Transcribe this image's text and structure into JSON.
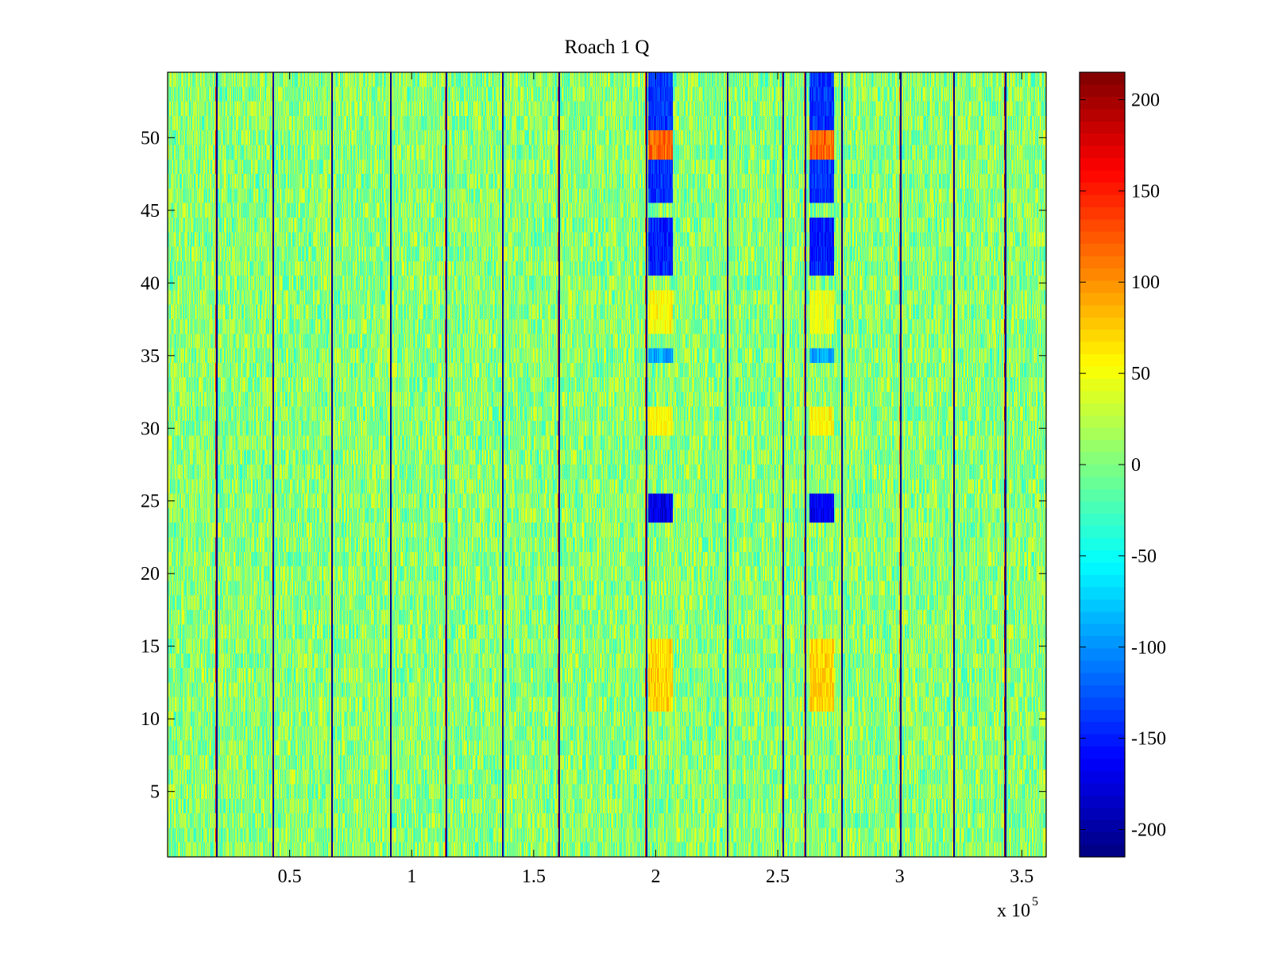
{
  "chart_data": {
    "type": "heatmap",
    "title": "Roach 1 Q",
    "xlabel": "",
    "ylabel": "",
    "x_multiplier": "x 10",
    "x_multiplier_exponent": "5",
    "xlim": [
      0,
      360000
    ],
    "ylim": [
      0.5,
      54.5
    ],
    "x_ticks": [
      {
        "value": 50000,
        "label": "0.5"
      },
      {
        "value": 100000,
        "label": "1"
      },
      {
        "value": 150000,
        "label": "1.5"
      },
      {
        "value": 200000,
        "label": "2"
      },
      {
        "value": 250000,
        "label": "2.5"
      },
      {
        "value": 300000,
        "label": "3"
      },
      {
        "value": 350000,
        "label": "3.5"
      }
    ],
    "y_ticks": [
      {
        "value": 5,
        "label": "5"
      },
      {
        "value": 10,
        "label": "10"
      },
      {
        "value": 15,
        "label": "15"
      },
      {
        "value": 20,
        "label": "20"
      },
      {
        "value": 25,
        "label": "25"
      },
      {
        "value": 30,
        "label": "30"
      },
      {
        "value": 35,
        "label": "35"
      },
      {
        "value": 40,
        "label": "40"
      },
      {
        "value": 45,
        "label": "45"
      },
      {
        "value": 50,
        "label": "50"
      }
    ],
    "colorbar": {
      "colormap": "jet",
      "clim": [
        -215,
        215
      ],
      "ticks": [
        {
          "value": 200,
          "label": "200"
        },
        {
          "value": 150,
          "label": "150"
        },
        {
          "value": 100,
          "label": "100"
        },
        {
          "value": 50,
          "label": "50"
        },
        {
          "value": 0,
          "label": "0"
        },
        {
          "value": -50,
          "label": "-50"
        },
        {
          "value": -100,
          "label": "-100"
        },
        {
          "value": -150,
          "label": "-150"
        },
        {
          "value": -200,
          "label": "-200"
        }
      ]
    },
    "rows": 54,
    "background_value_range": [
      -40,
      50
    ],
    "stripe_lines": [
      {
        "x": 20000,
        "value": -210,
        "edge_value": 160
      },
      {
        "x": 43000,
        "value": -200,
        "edge_value": 80
      },
      {
        "x": 67000,
        "value": -210,
        "edge_value": 60
      },
      {
        "x": 91000,
        "value": -210,
        "edge_value": 60
      },
      {
        "x": 114000,
        "value": -210,
        "edge_value": 140
      },
      {
        "x": 137000,
        "value": -200,
        "edge_value": 60
      },
      {
        "x": 160000,
        "value": -210,
        "edge_value": 140
      },
      {
        "x": 196000,
        "value": -210,
        "edge_value": 140
      },
      {
        "x": 229000,
        "value": -210,
        "edge_value": 60
      },
      {
        "x": 252000,
        "value": -200,
        "edge_value": 100
      },
      {
        "x": 261000,
        "value": -210,
        "edge_value": 120
      },
      {
        "x": 276000,
        "value": -210,
        "edge_value": 60
      },
      {
        "x": 300000,
        "value": -210,
        "edge_value": 120
      },
      {
        "x": 322000,
        "value": -210,
        "edge_value": 80
      },
      {
        "x": 343000,
        "value": -210,
        "edge_value": 200
      }
    ],
    "features": [
      {
        "x_start": 197000,
        "x_end": 207000,
        "row_start": 51,
        "row_end": 54,
        "value": -140
      },
      {
        "x_start": 197000,
        "x_end": 207000,
        "row_start": 49,
        "row_end": 50,
        "value": 120
      },
      {
        "x_start": 197000,
        "x_end": 207000,
        "row_start": 46,
        "row_end": 48,
        "value": -140
      },
      {
        "x_start": 197000,
        "x_end": 207000,
        "row_start": 41,
        "row_end": 44,
        "value": -150
      },
      {
        "x_start": 197000,
        "x_end": 207000,
        "row_start": 24,
        "row_end": 25,
        "value": -170
      },
      {
        "x_start": 197000,
        "x_end": 207000,
        "row_start": 30,
        "row_end": 31,
        "value": 55
      },
      {
        "x_start": 197000,
        "x_end": 207000,
        "row_start": 11,
        "row_end": 15,
        "value": 70
      },
      {
        "x_start": 197000,
        "x_end": 207000,
        "row_start": 37,
        "row_end": 39,
        "value": 55
      },
      {
        "x_start": 197000,
        "x_end": 207000,
        "row_start": 35,
        "row_end": 35,
        "value": -90
      },
      {
        "x_start": 263000,
        "x_end": 273000,
        "row_start": 51,
        "row_end": 54,
        "value": -140
      },
      {
        "x_start": 263000,
        "x_end": 273000,
        "row_start": 49,
        "row_end": 50,
        "value": 120
      },
      {
        "x_start": 263000,
        "x_end": 273000,
        "row_start": 46,
        "row_end": 48,
        "value": -140
      },
      {
        "x_start": 263000,
        "x_end": 273000,
        "row_start": 41,
        "row_end": 44,
        "value": -150
      },
      {
        "x_start": 263000,
        "x_end": 273000,
        "row_start": 24,
        "row_end": 25,
        "value": -170
      },
      {
        "x_start": 263000,
        "x_end": 273000,
        "row_start": 30,
        "row_end": 31,
        "value": 55
      },
      {
        "x_start": 263000,
        "x_end": 273000,
        "row_start": 11,
        "row_end": 15,
        "value": 70
      },
      {
        "x_start": 263000,
        "x_end": 273000,
        "row_start": 37,
        "row_end": 39,
        "value": 45
      },
      {
        "x_start": 263000,
        "x_end": 273000,
        "row_start": 35,
        "row_end": 35,
        "value": -90
      }
    ]
  }
}
